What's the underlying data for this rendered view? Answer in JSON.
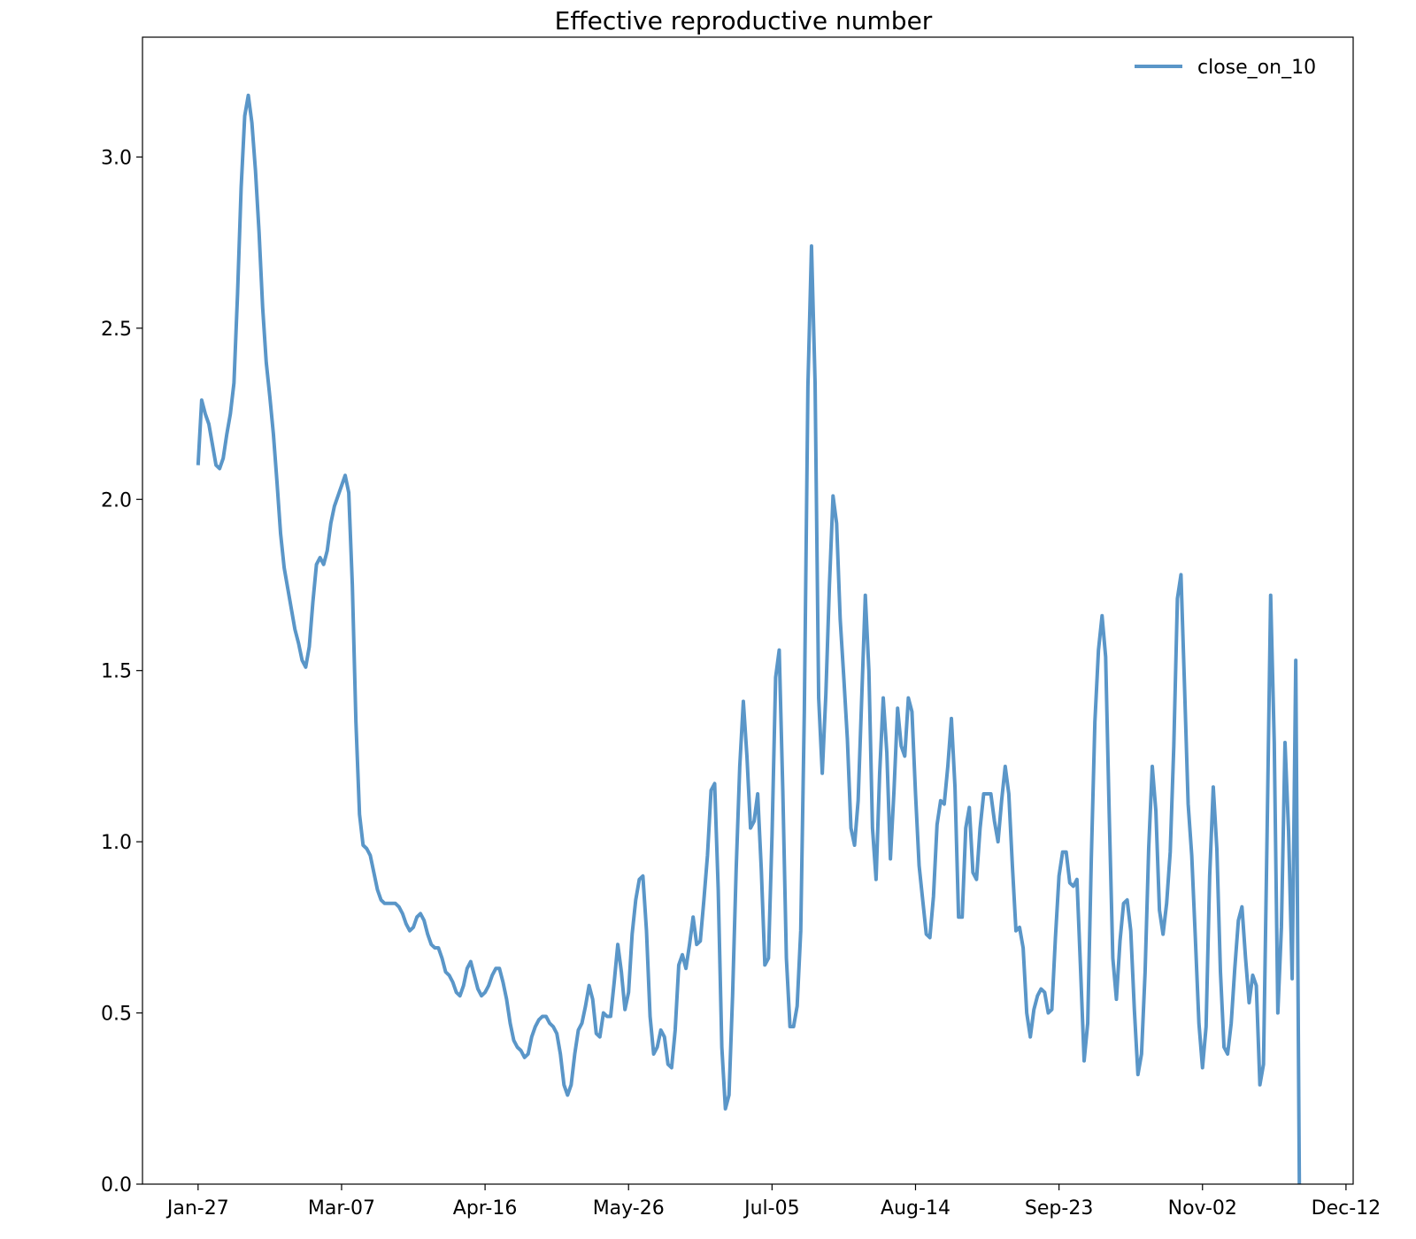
{
  "chart_data": {
    "type": "line",
    "title": "Effective reproductive number",
    "xlabel": "",
    "ylabel": "",
    "x_start_date": "2020-01-27",
    "x_ticks": [
      {
        "label": "Jan-27",
        "day": 0
      },
      {
        "label": "Mar-07",
        "day": 40
      },
      {
        "label": "Apr-16",
        "day": 80
      },
      {
        "label": "May-26",
        "day": 120
      },
      {
        "label": "Jul-05",
        "day": 160
      },
      {
        "label": "Aug-14",
        "day": 200
      },
      {
        "label": "Sep-23",
        "day": 240
      },
      {
        "label": "Nov-02",
        "day": 280
      },
      {
        "label": "Dec-12",
        "day": 320
      }
    ],
    "xlim": [
      -15.5,
      322
    ],
    "ylim": [
      0,
      3.35
    ],
    "y_ticks": [
      0.0,
      0.5,
      1.0,
      1.5,
      2.0,
      2.5,
      3.0
    ],
    "y_tick_labels": [
      "0.0",
      "0.5",
      "1.0",
      "1.5",
      "2.0",
      "2.5",
      "3.0"
    ],
    "grid": false,
    "legend": {
      "placement": "top-right",
      "frame": false
    },
    "series": [
      {
        "name": "close_on_10",
        "color": "#5a96c8",
        "points": [
          [
            0,
            2.1
          ],
          [
            1,
            2.29
          ],
          [
            2,
            2.25
          ],
          [
            3,
            2.22
          ],
          [
            4,
            2.16
          ],
          [
            5,
            2.1
          ],
          [
            6,
            2.09
          ],
          [
            7,
            2.12
          ],
          [
            8,
            2.19
          ],
          [
            9,
            2.25
          ],
          [
            10,
            2.34
          ],
          [
            11,
            2.6
          ],
          [
            12,
            2.91
          ],
          [
            13,
            3.12
          ],
          [
            14,
            3.18
          ],
          [
            15,
            3.1
          ],
          [
            16,
            2.96
          ],
          [
            17,
            2.78
          ],
          [
            18,
            2.56
          ],
          [
            19,
            2.4
          ],
          [
            20,
            2.3
          ],
          [
            21,
            2.19
          ],
          [
            22,
            2.05
          ],
          [
            23,
            1.9
          ],
          [
            24,
            1.8
          ],
          [
            25,
            1.74
          ],
          [
            26,
            1.68
          ],
          [
            27,
            1.62
          ],
          [
            28,
            1.58
          ],
          [
            29,
            1.53
          ],
          [
            30,
            1.51
          ],
          [
            31,
            1.57
          ],
          [
            32,
            1.7
          ],
          [
            33,
            1.81
          ],
          [
            34,
            1.83
          ],
          [
            35,
            1.81
          ],
          [
            36,
            1.85
          ],
          [
            37,
            1.93
          ],
          [
            38,
            1.98
          ],
          [
            39,
            2.01
          ],
          [
            40,
            2.04
          ],
          [
            41,
            2.07
          ],
          [
            42,
            2.02
          ],
          [
            43,
            1.75
          ],
          [
            44,
            1.35
          ],
          [
            45,
            1.08
          ],
          [
            46,
            0.99
          ],
          [
            47,
            0.98
          ],
          [
            48,
            0.96
          ],
          [
            49,
            0.91
          ],
          [
            50,
            0.86
          ],
          [
            51,
            0.83
          ],
          [
            52,
            0.82
          ],
          [
            53,
            0.82
          ],
          [
            54,
            0.82
          ],
          [
            55,
            0.82
          ],
          [
            56,
            0.81
          ],
          [
            57,
            0.79
          ],
          [
            58,
            0.76
          ],
          [
            59,
            0.74
          ],
          [
            60,
            0.75
          ],
          [
            61,
            0.78
          ],
          [
            62,
            0.79
          ],
          [
            63,
            0.77
          ],
          [
            64,
            0.73
          ],
          [
            65,
            0.7
          ],
          [
            66,
            0.69
          ],
          [
            67,
            0.69
          ],
          [
            68,
            0.66
          ],
          [
            69,
            0.62
          ],
          [
            70,
            0.61
          ],
          [
            71,
            0.59
          ],
          [
            72,
            0.56
          ],
          [
            73,
            0.55
          ],
          [
            74,
            0.58
          ],
          [
            75,
            0.63
          ],
          [
            76,
            0.65
          ],
          [
            77,
            0.61
          ],
          [
            78,
            0.57
          ],
          [
            79,
            0.55
          ],
          [
            80,
            0.56
          ],
          [
            81,
            0.58
          ],
          [
            82,
            0.61
          ],
          [
            83,
            0.63
          ],
          [
            84,
            0.63
          ],
          [
            85,
            0.59
          ],
          [
            86,
            0.54
          ],
          [
            87,
            0.47
          ],
          [
            88,
            0.42
          ],
          [
            89,
            0.4
          ],
          [
            90,
            0.39
          ],
          [
            91,
            0.37
          ],
          [
            92,
            0.38
          ],
          [
            93,
            0.43
          ],
          [
            94,
            0.46
          ],
          [
            95,
            0.48
          ],
          [
            96,
            0.49
          ],
          [
            97,
            0.49
          ],
          [
            98,
            0.47
          ],
          [
            99,
            0.46
          ],
          [
            100,
            0.44
          ],
          [
            101,
            0.38
          ],
          [
            102,
            0.29
          ],
          [
            103,
            0.26
          ],
          [
            104,
            0.29
          ],
          [
            105,
            0.38
          ],
          [
            106,
            0.45
          ],
          [
            107,
            0.47
          ],
          [
            108,
            0.52
          ],
          [
            109,
            0.58
          ],
          [
            110,
            0.54
          ],
          [
            111,
            0.44
          ],
          [
            112,
            0.43
          ],
          [
            113,
            0.5
          ],
          [
            114,
            0.49
          ],
          [
            115,
            0.49
          ],
          [
            116,
            0.59
          ],
          [
            117,
            0.7
          ],
          [
            118,
            0.62
          ],
          [
            119,
            0.51
          ],
          [
            120,
            0.56
          ],
          [
            121,
            0.73
          ],
          [
            122,
            0.83
          ],
          [
            123,
            0.89
          ],
          [
            124,
            0.9
          ],
          [
            125,
            0.74
          ],
          [
            126,
            0.49
          ],
          [
            127,
            0.38
          ],
          [
            128,
            0.4
          ],
          [
            129,
            0.45
          ],
          [
            130,
            0.43
          ],
          [
            131,
            0.35
          ],
          [
            132,
            0.34
          ],
          [
            133,
            0.45
          ],
          [
            134,
            0.64
          ],
          [
            135,
            0.67
          ],
          [
            136,
            0.63
          ],
          [
            137,
            0.7
          ],
          [
            138,
            0.78
          ],
          [
            139,
            0.7
          ],
          [
            140,
            0.71
          ],
          [
            141,
            0.83
          ],
          [
            142,
            0.96
          ],
          [
            143,
            1.15
          ],
          [
            144,
            1.17
          ],
          [
            145,
            0.86
          ],
          [
            146,
            0.4
          ],
          [
            147,
            0.22
          ],
          [
            148,
            0.26
          ],
          [
            149,
            0.55
          ],
          [
            150,
            0.92
          ],
          [
            151,
            1.22
          ],
          [
            152,
            1.41
          ],
          [
            153,
            1.25
          ],
          [
            154,
            1.04
          ],
          [
            155,
            1.06
          ],
          [
            156,
            1.14
          ],
          [
            157,
            0.92
          ],
          [
            158,
            0.64
          ],
          [
            159,
            0.66
          ],
          [
            160,
            1.02
          ],
          [
            161,
            1.48
          ],
          [
            162,
            1.56
          ],
          [
            163,
            1.15
          ],
          [
            164,
            0.66
          ],
          [
            165,
            0.46
          ],
          [
            166,
            0.46
          ],
          [
            167,
            0.52
          ],
          [
            168,
            0.74
          ],
          [
            169,
            1.38
          ],
          [
            170,
            2.33
          ],
          [
            171,
            2.74
          ],
          [
            172,
            2.34
          ],
          [
            173,
            1.42
          ],
          [
            174,
            1.2
          ],
          [
            175,
            1.43
          ],
          [
            176,
            1.75
          ],
          [
            177,
            2.01
          ],
          [
            178,
            1.93
          ],
          [
            179,
            1.65
          ],
          [
            180,
            1.48
          ],
          [
            181,
            1.3
          ],
          [
            182,
            1.04
          ],
          [
            183,
            0.99
          ],
          [
            184,
            1.12
          ],
          [
            185,
            1.42
          ],
          [
            186,
            1.72
          ],
          [
            187,
            1.5
          ],
          [
            188,
            1.04
          ],
          [
            189,
            0.89
          ],
          [
            190,
            1.2
          ],
          [
            191,
            1.42
          ],
          [
            192,
            1.26
          ],
          [
            193,
            0.95
          ],
          [
            194,
            1.15
          ],
          [
            195,
            1.39
          ],
          [
            196,
            1.28
          ],
          [
            197,
            1.25
          ],
          [
            198,
            1.42
          ],
          [
            199,
            1.38
          ],
          [
            200,
            1.14
          ],
          [
            201,
            0.93
          ],
          [
            202,
            0.83
          ],
          [
            203,
            0.73
          ],
          [
            204,
            0.72
          ],
          [
            205,
            0.84
          ],
          [
            206,
            1.05
          ],
          [
            207,
            1.12
          ],
          [
            208,
            1.11
          ],
          [
            209,
            1.22
          ],
          [
            210,
            1.36
          ],
          [
            211,
            1.16
          ],
          [
            212,
            0.78
          ],
          [
            213,
            0.78
          ],
          [
            214,
            1.04
          ],
          [
            215,
            1.1
          ],
          [
            216,
            0.91
          ],
          [
            217,
            0.89
          ],
          [
            218,
            1.04
          ],
          [
            219,
            1.14
          ],
          [
            220,
            1.14
          ],
          [
            221,
            1.14
          ],
          [
            222,
            1.06
          ],
          [
            223,
            1.0
          ],
          [
            224,
            1.12
          ],
          [
            225,
            1.22
          ],
          [
            226,
            1.14
          ],
          [
            227,
            0.93
          ],
          [
            228,
            0.74
          ],
          [
            229,
            0.75
          ],
          [
            230,
            0.69
          ],
          [
            231,
            0.5
          ],
          [
            232,
            0.43
          ],
          [
            233,
            0.51
          ],
          [
            234,
            0.55
          ],
          [
            235,
            0.57
          ],
          [
            236,
            0.56
          ],
          [
            237,
            0.5
          ],
          [
            238,
            0.51
          ],
          [
            239,
            0.72
          ],
          [
            240,
            0.9
          ],
          [
            241,
            0.97
          ],
          [
            242,
            0.97
          ],
          [
            243,
            0.88
          ],
          [
            244,
            0.87
          ],
          [
            245,
            0.89
          ],
          [
            246,
            0.63
          ],
          [
            247,
            0.36
          ],
          [
            248,
            0.47
          ],
          [
            249,
            0.95
          ],
          [
            250,
            1.35
          ],
          [
            251,
            1.56
          ],
          [
            252,
            1.66
          ],
          [
            253,
            1.54
          ],
          [
            254,
            1.08
          ],
          [
            255,
            0.66
          ],
          [
            256,
            0.54
          ],
          [
            257,
            0.71
          ],
          [
            258,
            0.82
          ],
          [
            259,
            0.83
          ],
          [
            260,
            0.74
          ],
          [
            261,
            0.51
          ],
          [
            262,
            0.32
          ],
          [
            263,
            0.38
          ],
          [
            264,
            0.62
          ],
          [
            265,
            0.98
          ],
          [
            266,
            1.22
          ],
          [
            267,
            1.09
          ],
          [
            268,
            0.8
          ],
          [
            269,
            0.73
          ],
          [
            270,
            0.82
          ],
          [
            271,
            0.97
          ],
          [
            272,
            1.28
          ],
          [
            273,
            1.71
          ],
          [
            274,
            1.78
          ],
          [
            275,
            1.45
          ],
          [
            276,
            1.11
          ],
          [
            277,
            0.96
          ],
          [
            278,
            0.72
          ],
          [
            279,
            0.47
          ],
          [
            280,
            0.34
          ],
          [
            281,
            0.46
          ],
          [
            282,
            0.9
          ],
          [
            283,
            1.16
          ],
          [
            284,
            0.98
          ],
          [
            285,
            0.62
          ],
          [
            286,
            0.4
          ],
          [
            287,
            0.38
          ],
          [
            288,
            0.47
          ],
          [
            289,
            0.63
          ],
          [
            290,
            0.77
          ],
          [
            291,
            0.81
          ],
          [
            292,
            0.66
          ],
          [
            293,
            0.53
          ],
          [
            294,
            0.61
          ],
          [
            295,
            0.58
          ],
          [
            296,
            0.29
          ],
          [
            297,
            0.35
          ],
          [
            298,
            1.02
          ],
          [
            299,
            1.72
          ],
          [
            300,
            1.29
          ],
          [
            301,
            0.5
          ],
          [
            302,
            0.75
          ],
          [
            303,
            1.29
          ],
          [
            304,
            1.03
          ],
          [
            305,
            0.6
          ],
          [
            306,
            1.53
          ],
          [
            307,
            0.0
          ]
        ]
      }
    ]
  }
}
